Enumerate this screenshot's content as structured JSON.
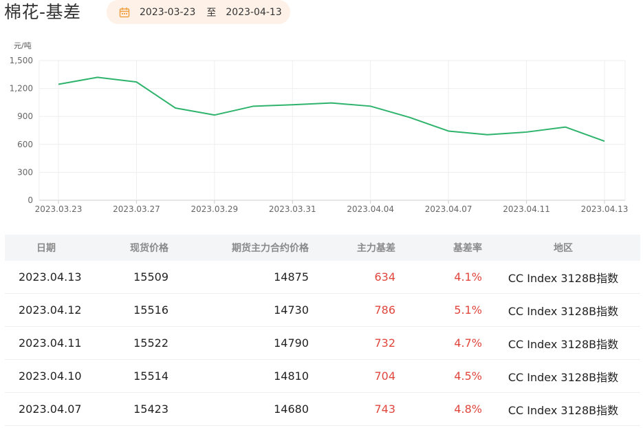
{
  "header": {
    "title": "棉花-基差",
    "date_start": "2023-03-23",
    "date_separator": "至",
    "date_end": "2023-04-13",
    "icon": "calendar-icon"
  },
  "colors": {
    "line": "#2db36b",
    "accent_orange": "#f0a040",
    "negative_red": "#e0463c",
    "grid": "#eeeeee"
  },
  "chart_data": {
    "type": "line",
    "ylabel": "元/吨",
    "ylim": [
      0,
      1500
    ],
    "yticks": [
      "0",
      "300",
      "600",
      "900",
      "1,200",
      "1,500"
    ],
    "ytick_values": [
      0,
      300,
      600,
      900,
      1200,
      1500
    ],
    "xtick_labels": [
      "2023.03.23",
      "2023.03.27",
      "2023.03.29",
      "2023.03.31",
      "2023.04.04",
      "2023.04.07",
      "2023.04.11",
      "2023.04.13"
    ],
    "x": [
      "2023.03.23",
      "2023.03.24",
      "2023.03.27",
      "2023.03.28",
      "2023.03.29",
      "2023.03.30",
      "2023.03.31",
      "2023.04.03",
      "2023.04.04",
      "2023.04.06",
      "2023.04.07",
      "2023.04.10",
      "2023.04.11",
      "2023.04.12",
      "2023.04.13"
    ],
    "values": [
      1245,
      1320,
      1270,
      990,
      915,
      1010,
      1025,
      1045,
      1010,
      890,
      743,
      704,
      732,
      786,
      634
    ],
    "grid": true
  },
  "table": {
    "headers": [
      "日期",
      "现货价格",
      "期货主力合约价格",
      "主力基差",
      "基差率",
      "地区"
    ],
    "rows": [
      {
        "date": "2023.04.13",
        "spot": "15509",
        "futures": "14875",
        "basis": "634",
        "rate": "4.1%",
        "region": "CC Index 3128B指数"
      },
      {
        "date": "2023.04.12",
        "spot": "15516",
        "futures": "14730",
        "basis": "786",
        "rate": "5.1%",
        "region": "CC Index 3128B指数"
      },
      {
        "date": "2023.04.11",
        "spot": "15522",
        "futures": "14790",
        "basis": "732",
        "rate": "4.7%",
        "region": "CC Index 3128B指数"
      },
      {
        "date": "2023.04.10",
        "spot": "15514",
        "futures": "14810",
        "basis": "704",
        "rate": "4.5%",
        "region": "CC Index 3128B指数"
      },
      {
        "date": "2023.04.07",
        "spot": "15423",
        "futures": "14680",
        "basis": "743",
        "rate": "4.8%",
        "region": "CC Index 3128B指数"
      }
    ]
  }
}
